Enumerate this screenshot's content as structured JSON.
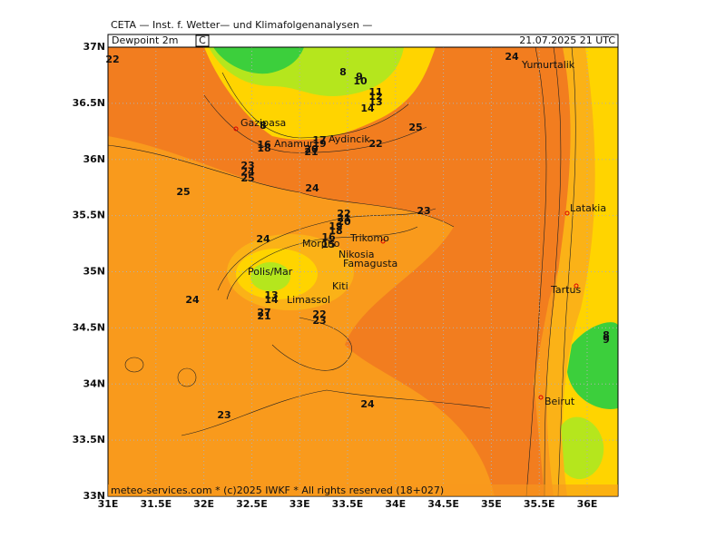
{
  "header": {
    "title": "CETA — Inst. f. Wetter— und Klimafolgenanalysen —",
    "variable": "Dewpoint 2m",
    "unit": "C",
    "valid": "21.07.2025 21 UTC"
  },
  "footer": "meteo-services.com * (c)2025 IWKF * All rights reserved (18+027)",
  "axes": {
    "lat_labels": [
      "37N",
      "36.5N",
      "36N",
      "35.5N",
      "35N",
      "34.5N",
      "34N",
      "33.5N",
      "33N"
    ],
    "lon_labels": [
      "31E",
      "31.5E",
      "32E",
      "32.5E",
      "33E",
      "33.5E",
      "34E",
      "34.5E",
      "35E",
      "35.5E",
      "36E"
    ]
  },
  "places": [
    "Yumurtalik",
    "Gazipasa",
    "Anamur",
    "Aydincik",
    "Latakia",
    "Morpho",
    "Trikomo",
    "Nikosia",
    "Famagusta",
    "Polis/Mar",
    "Kiti",
    "Limassol",
    "Tartus",
    "Beirut"
  ],
  "contour_labels": [
    "22",
    "8",
    "9",
    "10",
    "11",
    "12",
    "13",
    "14",
    "24",
    "25",
    "8",
    "18",
    "16",
    "17",
    "19",
    "20",
    "21",
    "22",
    "23",
    "24",
    "25",
    "25",
    "24",
    "23",
    "22",
    "21",
    "20",
    "19",
    "18",
    "16",
    "15",
    "24",
    "13",
    "14",
    "22",
    "23",
    "27",
    "21",
    "24",
    "23",
    "24",
    "8",
    "9"
  ]
}
